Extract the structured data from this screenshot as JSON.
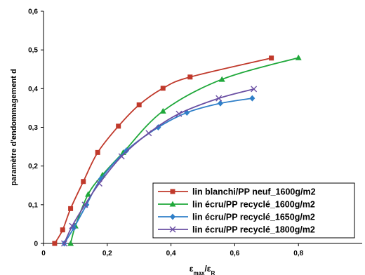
{
  "chart_data": {
    "type": "line",
    "ylabel": "paramètre d'endommagement d",
    "xlabel_parts": [
      "ε",
      "max",
      "/ε",
      "R"
    ],
    "xlim": [
      0,
      1.0
    ],
    "ylim": [
      0,
      0.6
    ],
    "x_ticks": [
      0,
      0.2,
      0.4,
      0.6,
      0.8
    ],
    "x_tick_labels": [
      "0",
      "0,2",
      "0,4",
      "0,6",
      "0,8"
    ],
    "y_ticks": [
      0,
      0.1,
      0.2,
      0.3,
      0.4,
      0.5,
      0.6
    ],
    "y_tick_labels": [
      "0",
      "0,1",
      "0,2",
      "0,3",
      "0,4",
      "0,5",
      "0,6"
    ],
    "grid": false,
    "legend_position": "bottom-right",
    "series": [
      {
        "name": "lin blanchi/PP neuf_1600g/m2",
        "color": "#c0392b",
        "marker": "square",
        "points": [
          [
            0.035,
            0.0
          ],
          [
            0.06,
            0.035
          ],
          [
            0.085,
            0.09
          ],
          [
            0.125,
            0.16
          ],
          [
            0.17,
            0.235
          ],
          [
            0.235,
            0.303
          ],
          [
            0.3,
            0.358
          ],
          [
            0.375,
            0.401
          ],
          [
            0.46,
            0.43
          ],
          [
            0.715,
            0.479
          ]
        ]
      },
      {
        "name": "lin écru/PP recyclé_1600g/m2",
        "color": "#1fa83a",
        "marker": "triangle",
        "points": [
          [
            0.085,
            0.0
          ],
          [
            0.1,
            0.045
          ],
          [
            0.14,
            0.127
          ],
          [
            0.185,
            0.177
          ],
          [
            0.25,
            0.235
          ],
          [
            0.375,
            0.342
          ],
          [
            0.56,
            0.424
          ],
          [
            0.8,
            0.48
          ]
        ]
      },
      {
        "name": "lin écru/PP recyclé_1650g/m2",
        "color": "#2f7fc8",
        "marker": "diamond",
        "points": [
          [
            0.065,
            0.0
          ],
          [
            0.095,
            0.04
          ],
          [
            0.135,
            0.1
          ],
          [
            0.18,
            0.167
          ],
          [
            0.26,
            0.24
          ],
          [
            0.36,
            0.3
          ],
          [
            0.45,
            0.338
          ],
          [
            0.555,
            0.362
          ],
          [
            0.655,
            0.375
          ]
        ]
      },
      {
        "name": "lin écru/PP recyclé_1800g/m2",
        "color": "#6a4fa3",
        "marker": "x",
        "points": [
          [
            0.065,
            0.0
          ],
          [
            0.09,
            0.045
          ],
          [
            0.13,
            0.1
          ],
          [
            0.175,
            0.155
          ],
          [
            0.245,
            0.225
          ],
          [
            0.33,
            0.285
          ],
          [
            0.425,
            0.335
          ],
          [
            0.55,
            0.375
          ],
          [
            0.66,
            0.399
          ]
        ]
      }
    ]
  }
}
